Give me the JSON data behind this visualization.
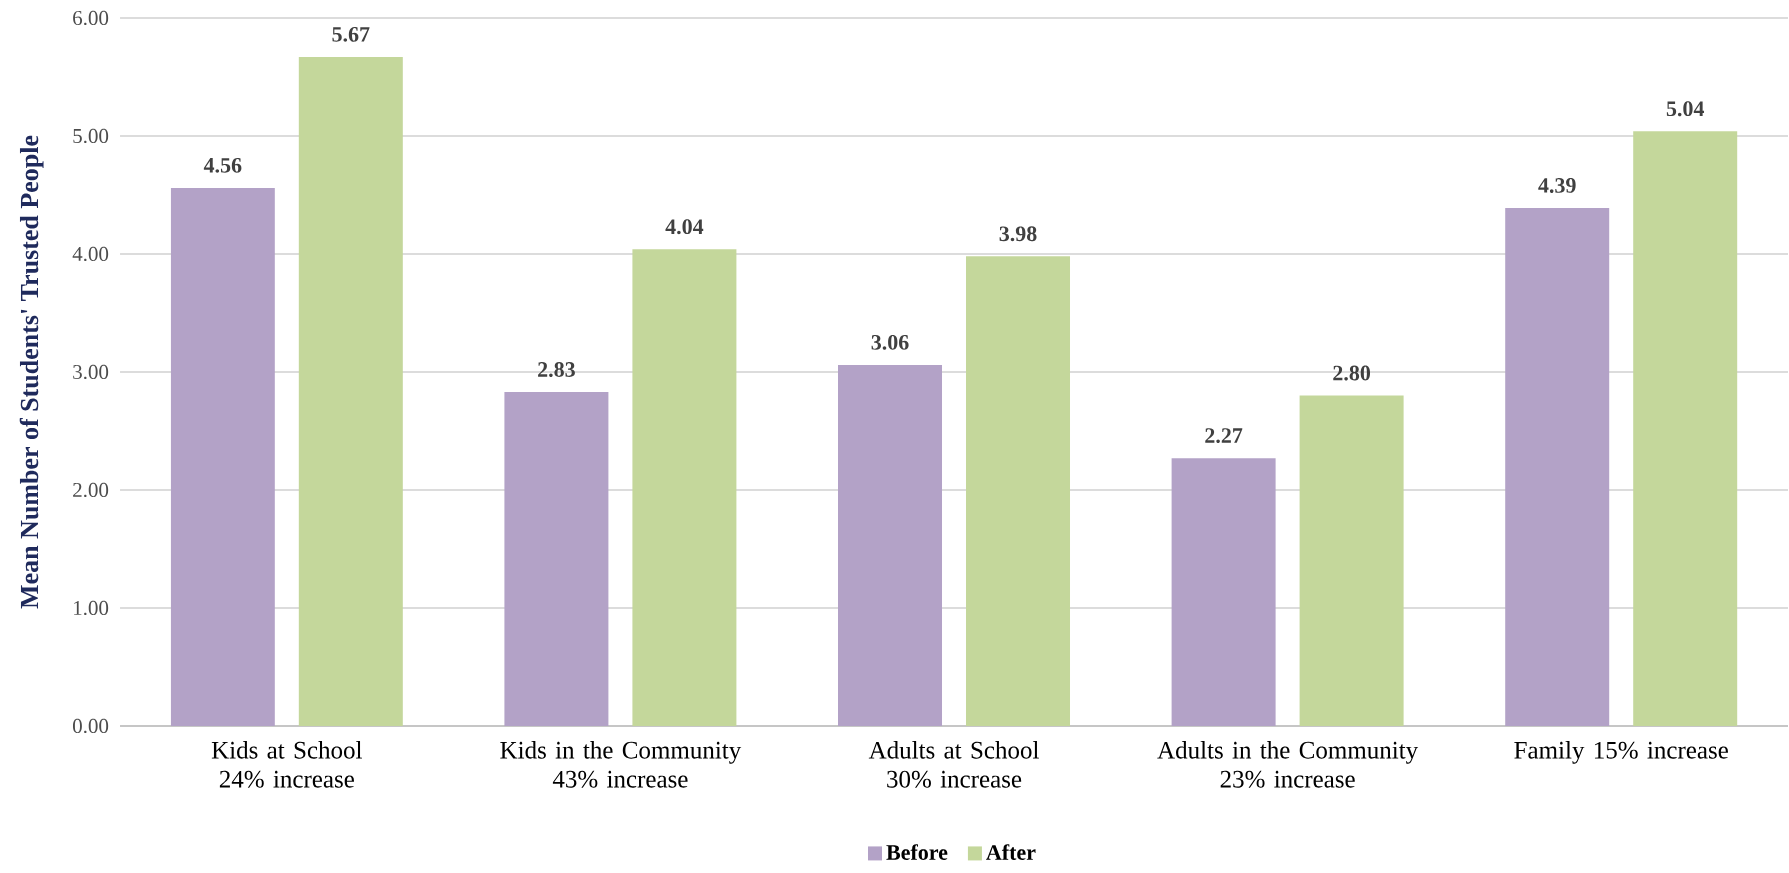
{
  "chart_data": {
    "type": "bar",
    "ylabel": "Mean Number of Students' Trusted People",
    "categories": [
      "Kids at School 24% increase",
      "Kids in the Community 43% increase",
      "Adults at School 30% increase",
      "Adults in the Community 23% increase",
      "Family 15% increase"
    ],
    "series": [
      {
        "name": "Before",
        "color": "#b3a2c7",
        "values": [
          4.56,
          2.83,
          3.06,
          2.27,
          4.39
        ],
        "value_labels": [
          "4.56",
          "2.83",
          "3.06",
          "2.27",
          "4.39"
        ]
      },
      {
        "name": "After",
        "color": "#c4d79b",
        "values": [
          5.67,
          4.04,
          3.98,
          2.8,
          5.04
        ],
        "value_labels": [
          "5.67",
          "4.04",
          "3.98",
          "2.80",
          "5.04"
        ]
      }
    ],
    "ylim": [
      0,
      6
    ],
    "yticks": [
      {
        "value": 0,
        "label": "0.00"
      },
      {
        "value": 1,
        "label": "1.00"
      },
      {
        "value": 2,
        "label": "2.00"
      },
      {
        "value": 3,
        "label": "3.00"
      },
      {
        "value": 4,
        "label": "4.00"
      },
      {
        "value": 5,
        "label": "5.00"
      },
      {
        "value": 6,
        "label": "6.00"
      }
    ],
    "grid": "y",
    "legend": "bottom"
  }
}
